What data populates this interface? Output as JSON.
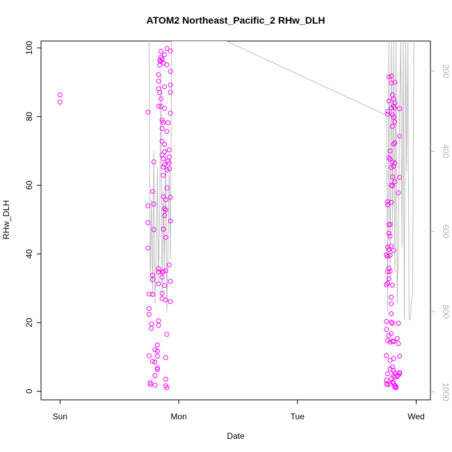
{
  "chart_data": {
    "type": "scatter",
    "title": "ATOM2 Northeast_Pacific_2 RHw_DLH",
    "xlabel": "Date",
    "ylabel": "RHw_DLH",
    "x_ticks": [
      {
        "label": "Sun",
        "value": 0
      },
      {
        "label": "Mon",
        "value": 1
      },
      {
        "label": "Tue",
        "value": 2
      },
      {
        "label": "Wed",
        "value": 3
      }
    ],
    "xlim": [
      -0.16,
      3.12
    ],
    "ylim": [
      -2.5,
      102
    ],
    "y_ticks": [
      0,
      20,
      40,
      60,
      80,
      100
    ],
    "y2_ticks": [
      200,
      400,
      600,
      800,
      1000
    ],
    "y2lim": [
      1020,
      125
    ],
    "grid": false,
    "colors": {
      "points": "#ff00ff",
      "line": "#bebebe",
      "right_axis": "#b3b3b3"
    },
    "series": [
      {
        "values": [
          [
            0.0,
            86.3
          ],
          [
            0.0,
            84.2
          ],
          [
            0.74,
            81.3
          ],
          [
            0.74,
            54.0
          ],
          [
            0.74,
            49.1
          ],
          [
            0.74,
            41.7
          ],
          [
            0.75,
            28.3
          ],
          [
            0.75,
            24.1
          ],
          [
            0.75,
            22.4
          ],
          [
            0.75,
            10.3
          ],
          [
            0.76,
            2.5
          ],
          [
            0.76,
            2.0
          ],
          [
            0.77,
            19.6
          ],
          [
            0.77,
            18.3
          ],
          [
            0.78,
            58.2
          ],
          [
            0.78,
            33.8
          ],
          [
            0.78,
            32.5
          ],
          [
            0.78,
            28.2
          ],
          [
            0.78,
            8.7
          ],
          [
            0.79,
            66.8
          ],
          [
            0.79,
            54.5
          ],
          [
            0.79,
            47.1
          ],
          [
            0.8,
            12.1
          ],
          [
            0.8,
            8.5
          ],
          [
            0.8,
            4.5
          ],
          [
            0.8,
            1.8
          ],
          [
            0.82,
            13.5
          ],
          [
            0.82,
            11.7
          ],
          [
            0.82,
            10.2
          ],
          [
            0.82,
            6.8
          ],
          [
            0.82,
            6.3
          ],
          [
            0.83,
            35.7
          ],
          [
            0.83,
            34.7
          ],
          [
            0.83,
            31.3
          ],
          [
            0.83,
            20.5
          ],
          [
            0.83,
            19.2
          ],
          [
            0.83,
            92.2
          ],
          [
            0.83,
            90.3
          ],
          [
            0.83,
            88.1
          ],
          [
            0.83,
            83.0
          ],
          [
            0.84,
            96.4
          ],
          [
            0.84,
            95.0
          ],
          [
            0.84,
            87.0
          ],
          [
            0.85,
            99.0
          ],
          [
            0.85,
            97.3
          ],
          [
            0.85,
            96.0
          ],
          [
            0.85,
            85.2
          ],
          [
            0.85,
            83.0
          ],
          [
            0.86,
            96.8
          ],
          [
            0.86,
            78.9
          ],
          [
            0.86,
            76.5
          ],
          [
            0.86,
            72.8
          ],
          [
            0.86,
            68.8
          ],
          [
            0.86,
            28.5
          ],
          [
            0.86,
            27.0
          ],
          [
            0.86,
            34.7
          ],
          [
            0.86,
            33.2
          ],
          [
            0.87,
            95.6
          ],
          [
            0.87,
            78.3
          ],
          [
            0.87,
            67.7
          ],
          [
            0.87,
            65.3
          ],
          [
            0.87,
            62.9
          ],
          [
            0.87,
            56.7
          ],
          [
            0.87,
            47.2
          ],
          [
            0.87,
            34.8
          ],
          [
            0.88,
            98.0
          ],
          [
            0.88,
            88.7
          ],
          [
            0.88,
            82.4
          ],
          [
            0.88,
            71.9
          ],
          [
            0.88,
            69.7
          ],
          [
            0.88,
            66.0
          ],
          [
            0.88,
            53.2
          ],
          [
            0.88,
            51.2
          ],
          [
            0.88,
            30.8
          ],
          [
            0.89,
            55.8
          ],
          [
            0.89,
            52.8
          ],
          [
            0.89,
            44.8
          ],
          [
            0.89,
            35.1
          ],
          [
            0.89,
            26.6
          ],
          [
            0.89,
            9.8
          ],
          [
            0.89,
            3.5
          ],
          [
            0.89,
            1.6
          ],
          [
            0.9,
            99.8
          ],
          [
            0.9,
            95.1
          ],
          [
            0.9,
            75.7
          ],
          [
            0.9,
            64.5
          ],
          [
            0.9,
            59.2
          ],
          [
            0.9,
            16.6
          ],
          [
            0.9,
            1.0
          ],
          [
            0.91,
            78.2
          ],
          [
            0.91,
            67.0
          ],
          [
            0.92,
            70.3
          ],
          [
            0.92,
            68.2
          ],
          [
            0.92,
            66.4
          ],
          [
            0.92,
            64.8
          ],
          [
            0.92,
            36.8
          ],
          [
            0.93,
            99.1
          ],
          [
            0.93,
            93.1
          ],
          [
            0.93,
            89.2
          ],
          [
            0.93,
            87.1
          ],
          [
            0.93,
            81.0
          ],
          [
            0.93,
            56.5
          ],
          [
            0.93,
            49.6
          ],
          [
            0.93,
            32.0
          ],
          [
            0.93,
            26.1
          ],
          [
            2.75,
            39.7
          ],
          [
            2.75,
            31.0
          ],
          [
            2.75,
            20.3
          ],
          [
            2.75,
            18.0
          ],
          [
            2.75,
            10.4
          ],
          [
            2.75,
            3.2
          ],
          [
            2.75,
            2.2
          ],
          [
            2.76,
            81.5
          ],
          [
            2.76,
            80.7
          ],
          [
            2.76,
            55.2
          ],
          [
            2.76,
            54.3
          ],
          [
            2.76,
            42.0
          ],
          [
            2.76,
            39.3
          ],
          [
            2.76,
            34.8
          ],
          [
            2.76,
            31.5
          ],
          [
            2.76,
            14.8
          ],
          [
            2.76,
            5.1
          ],
          [
            2.76,
            1.9
          ],
          [
            2.77,
            91.5
          ],
          [
            2.77,
            84.5
          ],
          [
            2.77,
            68.0
          ],
          [
            2.77,
            48.5
          ],
          [
            2.77,
            46.0
          ],
          [
            2.77,
            41.3
          ],
          [
            2.77,
            35.8
          ],
          [
            2.77,
            32.8
          ],
          [
            2.77,
            16.2
          ],
          [
            2.78,
            70.0
          ],
          [
            2.78,
            67.6
          ],
          [
            2.78,
            48.6
          ],
          [
            2.78,
            45.2
          ],
          [
            2.78,
            39.6
          ],
          [
            2.78,
            34.9
          ],
          [
            2.78,
            14.3
          ],
          [
            2.78,
            9.0
          ],
          [
            2.78,
            6.5
          ],
          [
            2.78,
            2.1
          ],
          [
            2.79,
            91.8
          ],
          [
            2.79,
            89.8
          ],
          [
            2.79,
            82.5
          ],
          [
            2.79,
            65.2
          ],
          [
            2.79,
            60.0
          ],
          [
            2.79,
            55.0
          ],
          [
            2.79,
            42.3
          ],
          [
            2.79,
            27.4
          ],
          [
            2.79,
            25.5
          ],
          [
            2.79,
            22.6
          ],
          [
            2.79,
            20.1
          ],
          [
            2.79,
            16.8
          ],
          [
            2.79,
            3.6
          ],
          [
            2.8,
            86.3
          ],
          [
            2.8,
            80.5
          ],
          [
            2.8,
            77.2
          ],
          [
            2.8,
            66.8
          ],
          [
            2.8,
            62.4
          ],
          [
            2.8,
            59.8
          ],
          [
            2.8,
            30.9
          ],
          [
            2.8,
            19.8
          ],
          [
            2.8,
            14.6
          ],
          [
            2.8,
            7.1
          ],
          [
            2.8,
            2.7
          ],
          [
            2.81,
            85.1
          ],
          [
            2.81,
            83.0
          ],
          [
            2.81,
            79.8
          ],
          [
            2.81,
            72.0
          ],
          [
            2.81,
            65.5
          ],
          [
            2.81,
            41.0
          ],
          [
            2.81,
            14.5
          ],
          [
            2.81,
            9.5
          ],
          [
            2.81,
            6.0
          ],
          [
            2.81,
            4.5
          ],
          [
            2.81,
            2.4
          ],
          [
            2.82,
            90.0
          ],
          [
            2.82,
            84.0
          ],
          [
            2.82,
            82.5
          ],
          [
            2.82,
            78.4
          ],
          [
            2.82,
            72.4
          ],
          [
            2.82,
            66.5
          ],
          [
            2.82,
            61.0
          ],
          [
            2.82,
            5.3
          ],
          [
            2.82,
            4.1
          ],
          [
            2.82,
            1.7
          ],
          [
            2.82,
            1.2
          ],
          [
            2.83,
            1.4
          ],
          [
            2.83,
            1.0
          ],
          [
            2.84,
            15.4
          ],
          [
            2.84,
            4.3
          ],
          [
            2.85,
            57.8
          ],
          [
            2.85,
            19.8
          ],
          [
            2.85,
            13.9
          ],
          [
            2.85,
            4.6
          ],
          [
            2.86,
            82.3
          ],
          [
            2.86,
            74.3
          ],
          [
            2.86,
            62.3
          ],
          [
            2.86,
            10.2
          ],
          [
            2.86,
            5.5
          ],
          [
            2.86,
            5.1
          ]
        ]
      }
    ],
    "line_series": {
      "y_axis": "right",
      "points": [
        [
          0.75,
          125
        ],
        [
          0.76,
          730
        ],
        [
          0.77,
          520
        ],
        [
          0.78,
          760
        ],
        [
          0.79,
          400
        ],
        [
          0.8,
          780
        ],
        [
          0.81,
          680
        ],
        [
          0.82,
          440
        ],
        [
          0.83,
          730
        ],
        [
          0.84,
          540
        ],
        [
          0.85,
          210
        ],
        [
          0.86,
          760
        ],
        [
          0.87,
          500
        ],
        [
          0.88,
          700
        ],
        [
          0.89,
          390
        ],
        [
          0.9,
          800
        ],
        [
          0.91,
          640
        ],
        [
          0.92,
          440
        ],
        [
          0.93,
          670
        ],
        [
          0.94,
          125
        ],
        [
          0.95,
          125
        ],
        [
          0.96,
          125
        ],
        [
          1.4,
          125
        ],
        [
          2.75,
          310
        ],
        [
          2.76,
          800
        ],
        [
          2.77,
          125
        ],
        [
          2.78,
          720
        ],
        [
          2.79,
          125
        ],
        [
          2.8,
          600
        ],
        [
          2.81,
          125
        ],
        [
          2.82,
          700
        ],
        [
          2.83,
          125
        ],
        [
          2.84,
          780
        ],
        [
          2.85,
          640
        ],
        [
          2.86,
          300
        ],
        [
          2.87,
          125
        ],
        [
          2.88,
          640
        ],
        [
          2.89,
          125
        ],
        [
          2.9,
          820
        ],
        [
          2.91,
          125
        ],
        [
          2.92,
          450
        ],
        [
          2.93,
          125
        ],
        [
          2.94,
          820
        ],
        [
          2.95,
          820
        ],
        [
          2.96,
          770
        ],
        [
          2.97,
          760
        ],
        [
          2.98,
          125
        ]
      ]
    }
  }
}
